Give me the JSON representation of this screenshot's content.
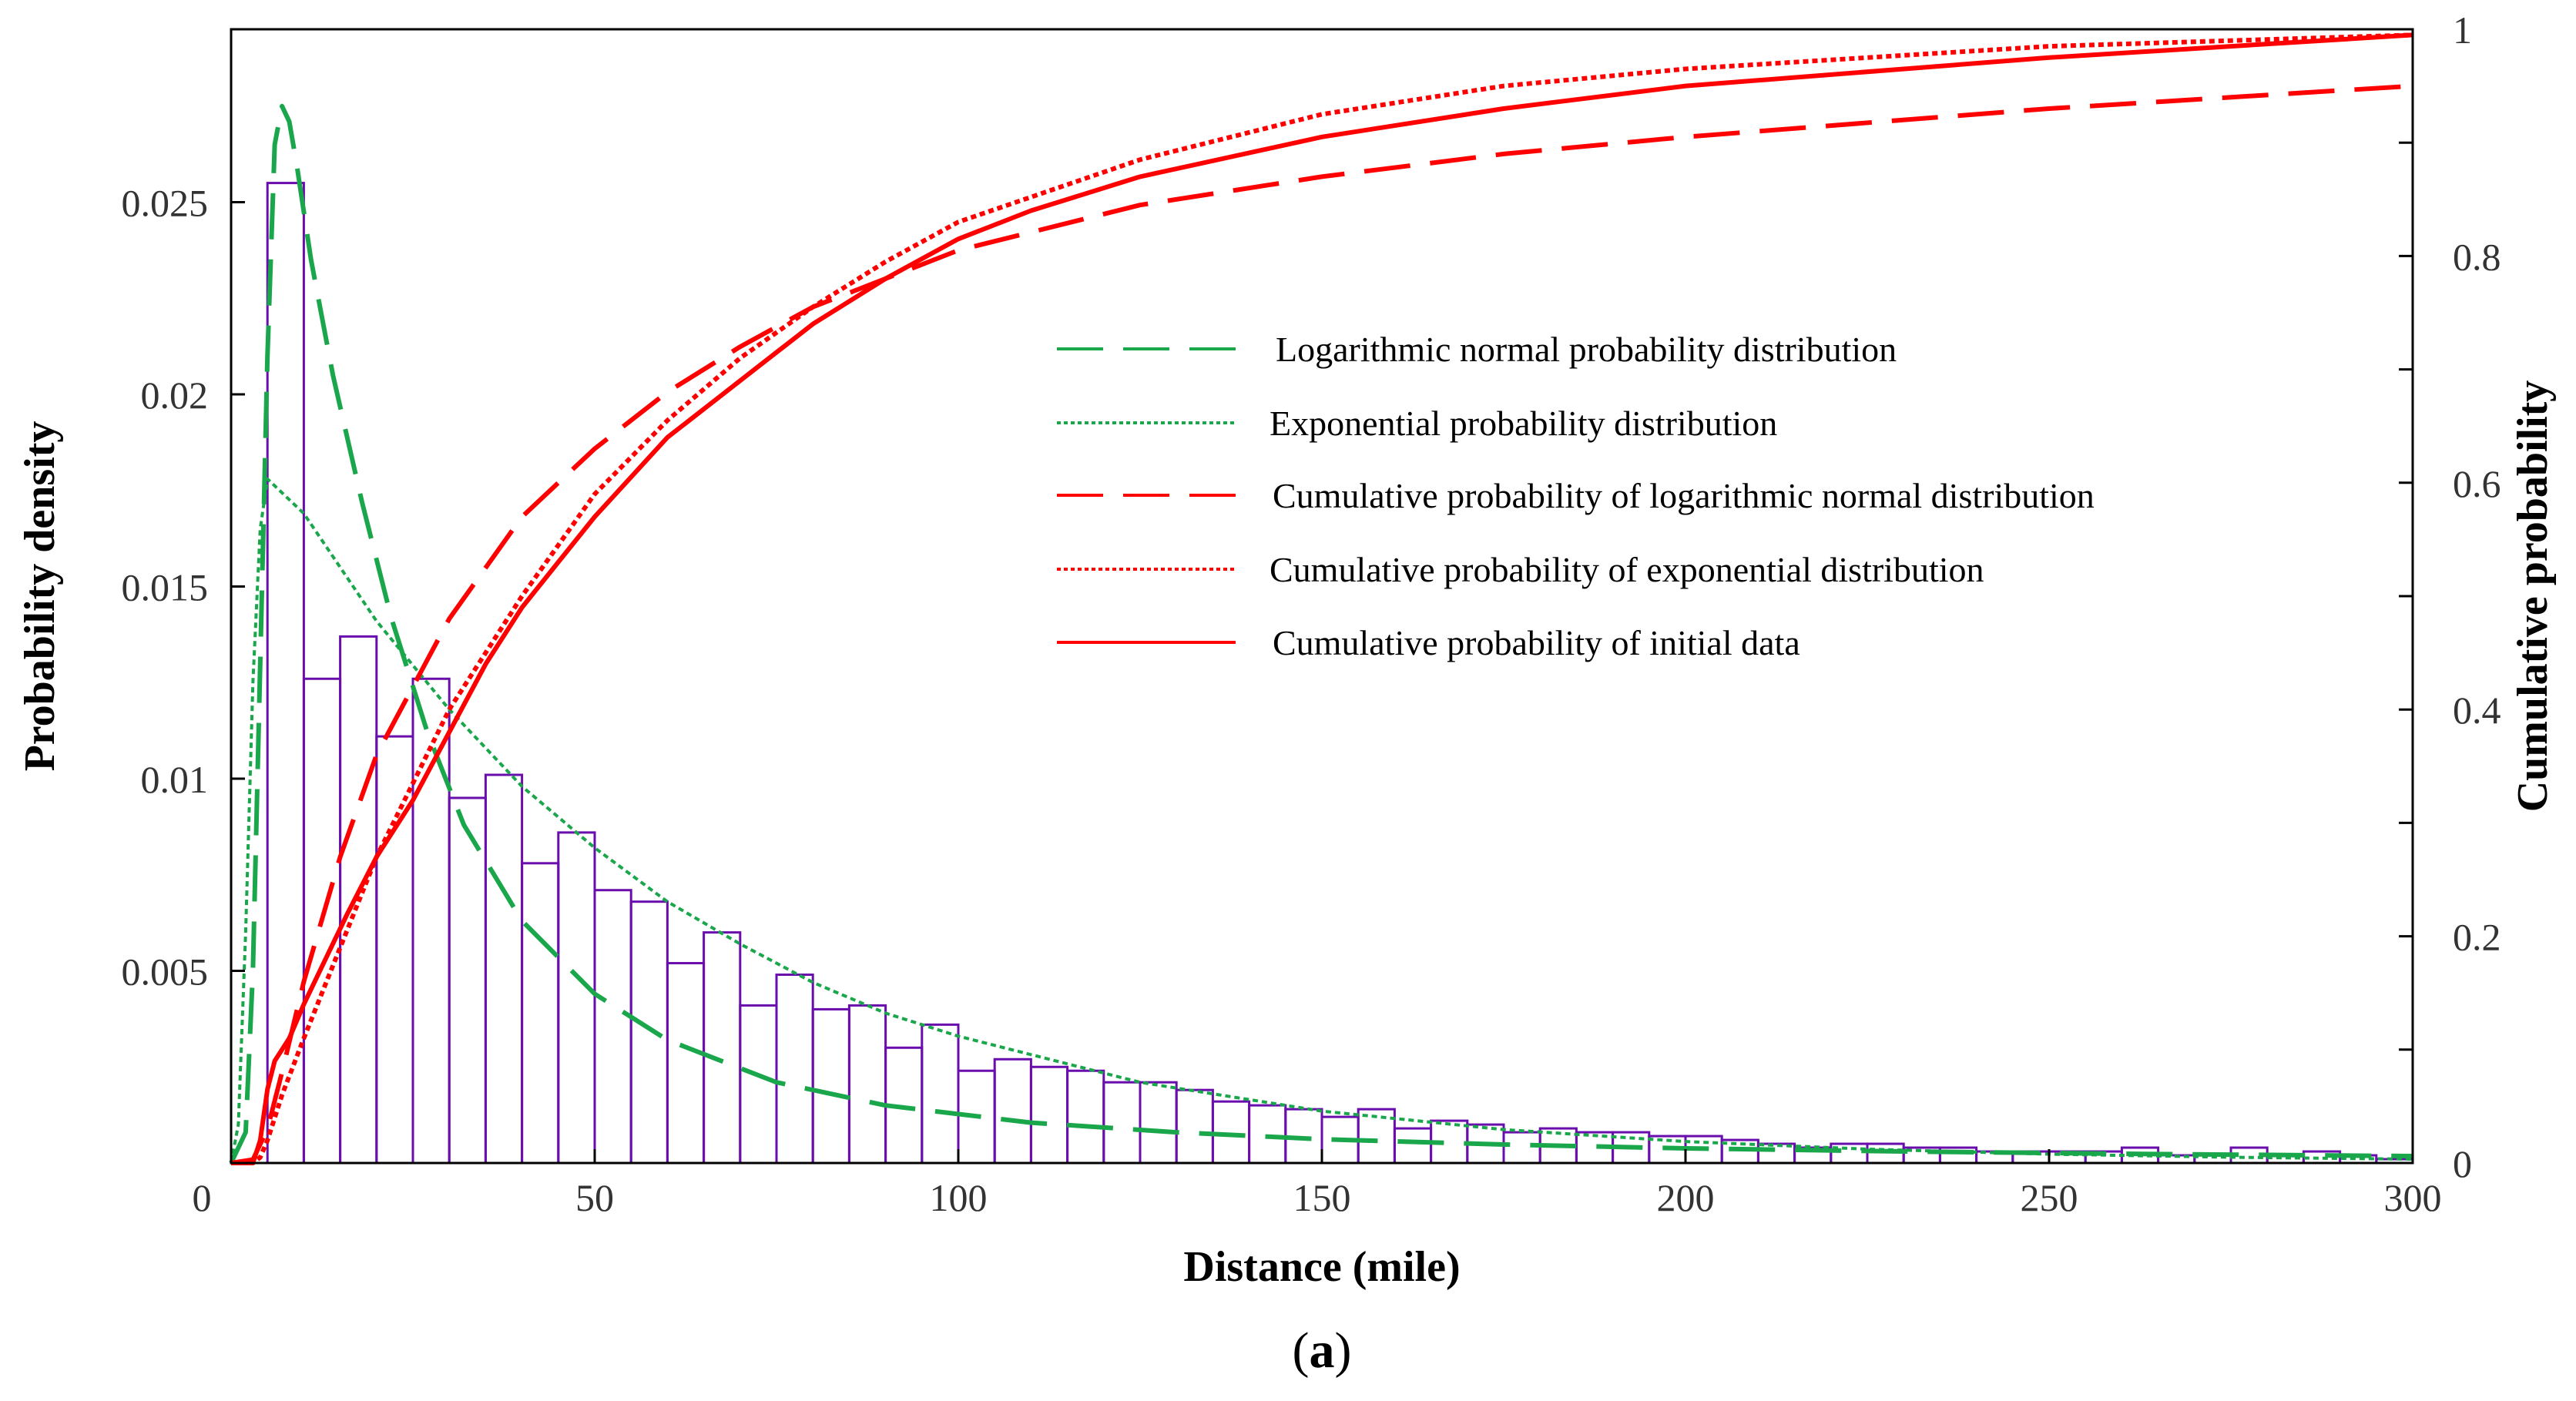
{
  "chart_data": {
    "type": "bar+line",
    "caption_open": "(",
    "caption_letter": "a",
    "caption_close": ")",
    "xlabel": "Distance (mile)",
    "ylabel_left": "Probability density",
    "ylabel_right": "Cumulative probability",
    "xlim": [
      0,
      300
    ],
    "ylim_left": [
      0,
      0.0295
    ],
    "ylim_right": [
      0,
      1
    ],
    "x_ticks": [
      {
        "value": 0,
        "label": "0"
      },
      {
        "value": 50,
        "label": "50"
      },
      {
        "value": 100,
        "label": "100"
      },
      {
        "value": 150,
        "label": "150"
      },
      {
        "value": 200,
        "label": "200"
      },
      {
        "value": 250,
        "label": "250"
      },
      {
        "value": 300,
        "label": "300"
      }
    ],
    "y_ticks_left": [
      {
        "value": 0.005,
        "label": "0.005"
      },
      {
        "value": 0.01,
        "label": "0.01"
      },
      {
        "value": 0.015,
        "label": "0.015"
      },
      {
        "value": 0.02,
        "label": "0.02"
      },
      {
        "value": 0.025,
        "label": "0.025"
      }
    ],
    "y_ticks_right": [
      {
        "value": 0,
        "label": "0"
      },
      {
        "value": 0.2,
        "label": "0.2"
      },
      {
        "value": 0.4,
        "label": "0.4"
      },
      {
        "value": 0.6,
        "label": "0.6"
      },
      {
        "value": 0.8,
        "label": "0.8"
      },
      {
        "value": 1,
        "label": "1"
      }
    ],
    "histogram": {
      "bin_width": 5,
      "bin_start": 0,
      "color": "#6a0dad",
      "values": [
        0.0,
        0.0255,
        0.0126,
        0.0137,
        0.0111,
        0.0126,
        0.0095,
        0.0101,
        0.0078,
        0.0086,
        0.0071,
        0.0068,
        0.0052,
        0.006,
        0.0041,
        0.0049,
        0.004,
        0.0041,
        0.003,
        0.0036,
        0.0024,
        0.0027,
        0.0025,
        0.0024,
        0.0021,
        0.0021,
        0.0019,
        0.0016,
        0.0015,
        0.0014,
        0.0012,
        0.0014,
        0.0009,
        0.0011,
        0.001,
        0.0008,
        0.0009,
        0.0008,
        0.0008,
        0.0007,
        0.0007,
        0.0006,
        0.0005,
        0.0004,
        0.0005,
        0.0005,
        0.0004,
        0.0004,
        0.0003,
        0.0003,
        0.0003,
        0.0003,
        0.0004,
        0.0002,
        0.0002,
        0.0004,
        0.0002,
        0.0003,
        0.0002,
        0.0001
      ]
    },
    "series": [
      {
        "name": "Logarithmic normal probability distribution",
        "axis": "left",
        "color": "#1aa64b",
        "style": "long-dash",
        "x": [
          0,
          2,
          3,
          4,
          5,
          6,
          7,
          8,
          9,
          11,
          14,
          18,
          22,
          27,
          32,
          40,
          50,
          60,
          75,
          90,
          110,
          130,
          150,
          175,
          200,
          230,
          260,
          300
        ],
        "y": [
          0.0,
          0.0008,
          0.005,
          0.013,
          0.021,
          0.0265,
          0.0275,
          0.0271,
          0.026,
          0.0235,
          0.0205,
          0.0172,
          0.0142,
          0.0112,
          0.0088,
          0.0063,
          0.0044,
          0.0032,
          0.0021,
          0.0015,
          0.00105,
          0.0008,
          0.00062,
          0.00048,
          0.00038,
          0.0003,
          0.00024,
          0.00018
        ]
      },
      {
        "name": "Exponential probability distribution",
        "axis": "left",
        "color": "#1aa64b",
        "style": "dotted",
        "x": [
          0,
          1,
          2,
          3,
          4,
          5,
          10,
          20,
          30,
          40,
          50,
          60,
          70,
          80,
          90,
          100,
          125,
          150,
          175,
          200,
          225,
          250,
          275,
          300
        ],
        "y": [
          0.0,
          0.001,
          0.006,
          0.0125,
          0.0165,
          0.0178,
          0.0169,
          0.0141,
          0.0118,
          0.0098,
          0.0082,
          0.0068,
          0.0057,
          0.0047,
          0.0039,
          0.0033,
          0.0021,
          0.00135,
          0.00087,
          0.00056,
          0.00036,
          0.00023,
          0.00015,
          0.0001
        ]
      },
      {
        "name": "Cumulative probability of logarithmic normal distribution",
        "axis": "right",
        "color": "#ff0000",
        "style": "long-dash",
        "x": [
          0,
          3,
          5,
          7,
          10,
          15,
          20,
          30,
          40,
          50,
          60,
          70,
          80,
          90,
          100,
          125,
          150,
          175,
          200,
          250,
          300
        ],
        "y": [
          0.0,
          0.003,
          0.03,
          0.08,
          0.16,
          0.27,
          0.36,
          0.48,
          0.57,
          0.63,
          0.68,
          0.72,
          0.755,
          0.78,
          0.805,
          0.845,
          0.87,
          0.89,
          0.905,
          0.93,
          0.95
        ]
      },
      {
        "name": "Cumulative probability of exponential  distribution",
        "axis": "right",
        "color": "#ff0000",
        "style": "dotted",
        "x": [
          0,
          3,
          4,
          5,
          7,
          10,
          15,
          20,
          30,
          40,
          50,
          60,
          70,
          80,
          90,
          100,
          125,
          150,
          175,
          200,
          250,
          300
        ],
        "y": [
          0.0,
          0.0,
          0.005,
          0.02,
          0.06,
          0.11,
          0.19,
          0.27,
          0.4,
          0.5,
          0.59,
          0.655,
          0.71,
          0.755,
          0.795,
          0.83,
          0.885,
          0.925,
          0.95,
          0.965,
          0.985,
          0.995
        ]
      },
      {
        "name": "Cumulative probability of initial data",
        "axis": "right",
        "color": "#ff0000",
        "style": "solid",
        "x": [
          0,
          3,
          4,
          5,
          6,
          8,
          10,
          13,
          16,
          20,
          25,
          30,
          35,
          40,
          45,
          50,
          60,
          70,
          80,
          90,
          100,
          110,
          125,
          150,
          175,
          200,
          250,
          300
        ],
        "y": [
          0.0,
          0.0,
          0.02,
          0.065,
          0.09,
          0.11,
          0.14,
          0.18,
          0.22,
          0.27,
          0.32,
          0.38,
          0.44,
          0.49,
          0.53,
          0.57,
          0.64,
          0.69,
          0.74,
          0.78,
          0.815,
          0.84,
          0.87,
          0.905,
          0.93,
          0.95,
          0.975,
          0.995
        ]
      }
    ],
    "legend_position": "center-right"
  }
}
